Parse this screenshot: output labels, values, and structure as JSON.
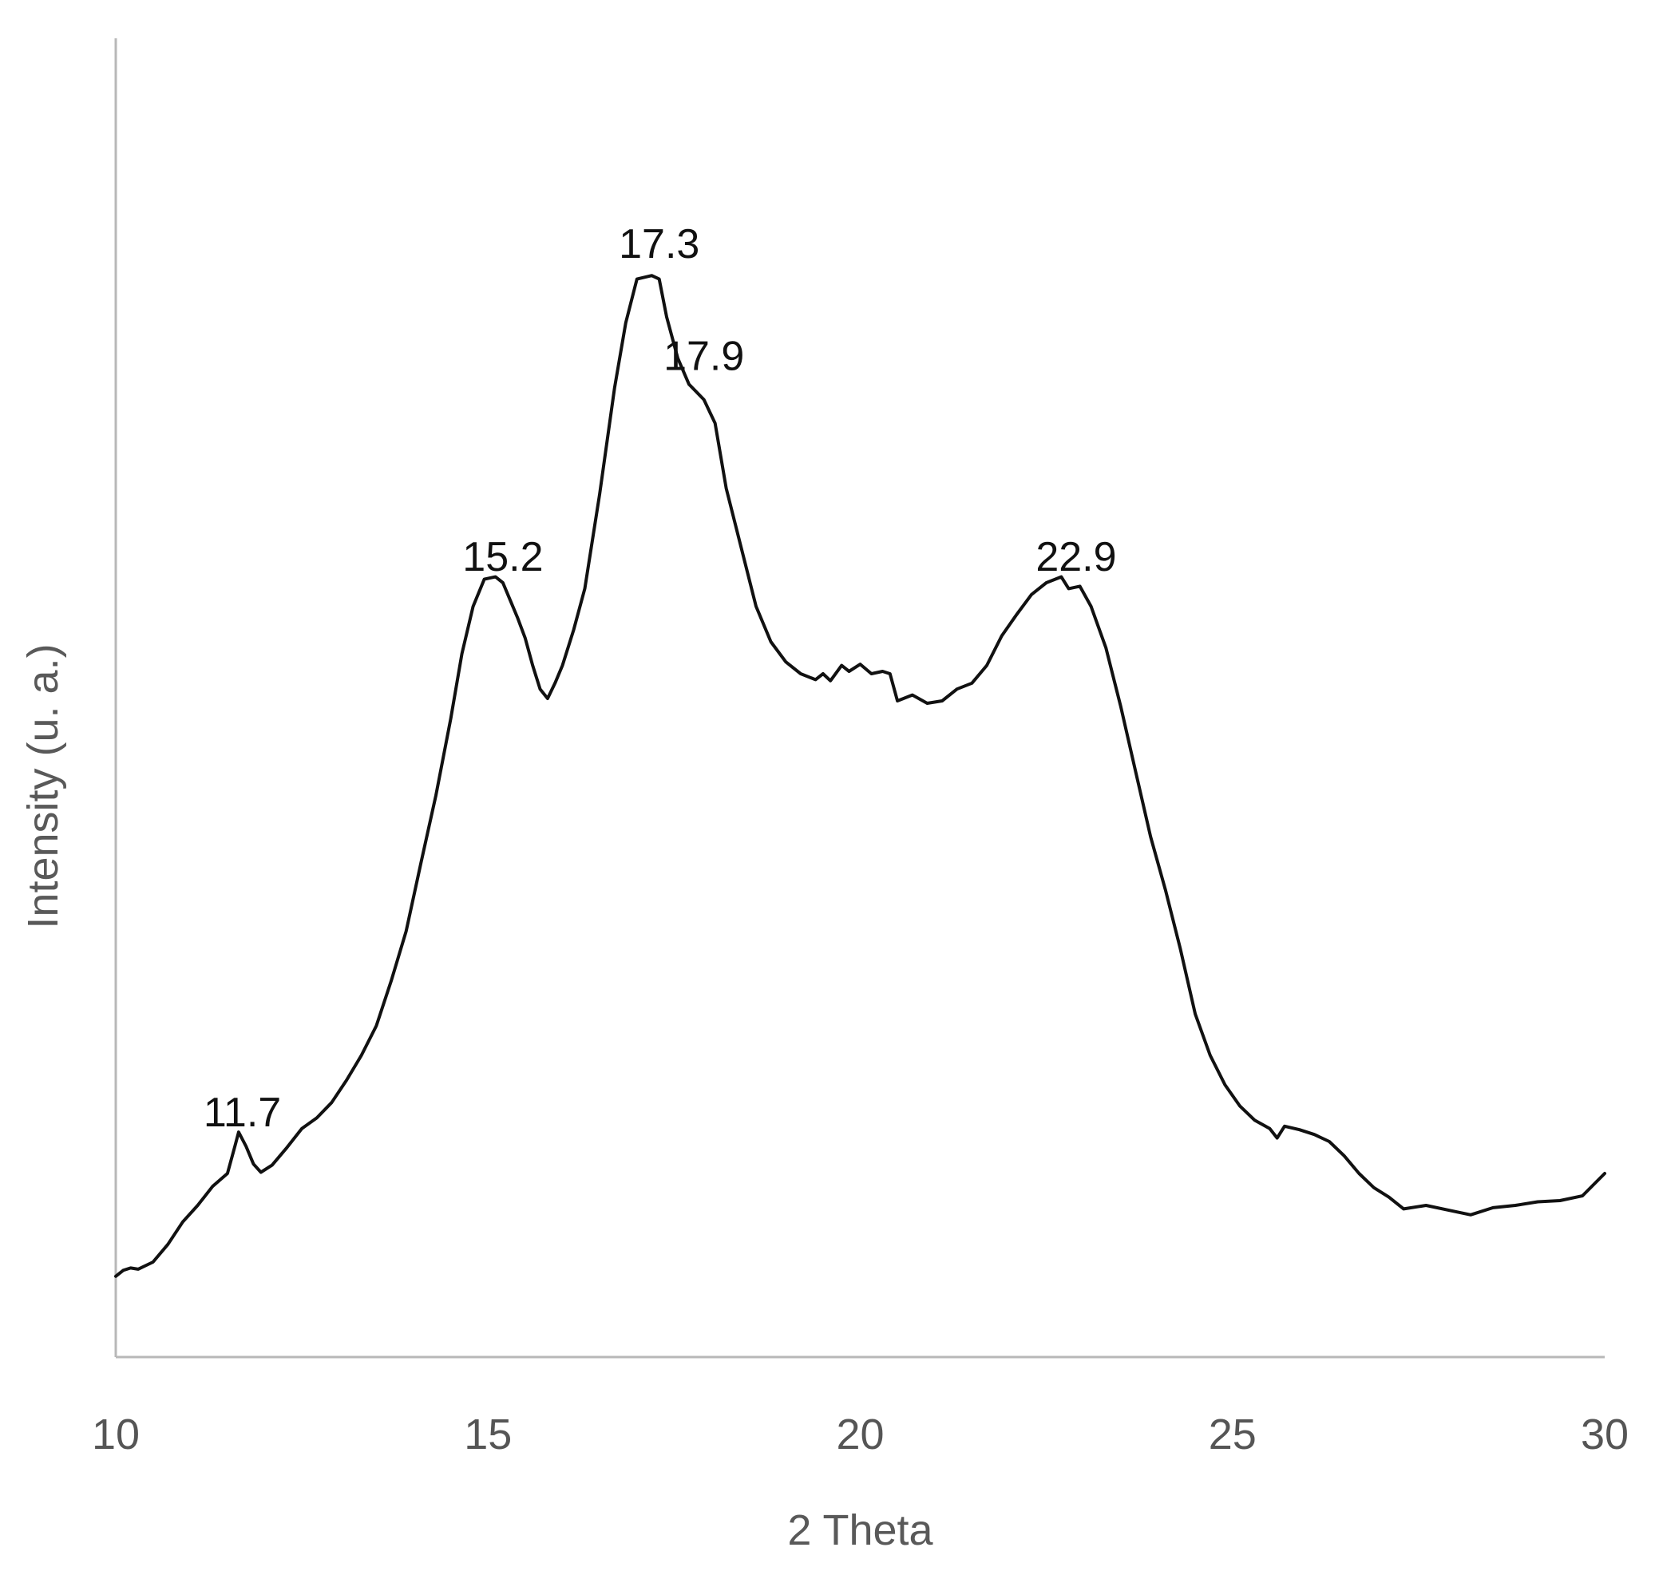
{
  "chart_data": {
    "type": "line",
    "title": "",
    "xlabel": "2 Theta",
    "ylabel": "Intensity (u. a.)",
    "xlim": [
      10,
      30
    ],
    "ylim": [
      0,
      100
    ],
    "x_ticks": [
      "10",
      "15",
      "20",
      "25",
      "30"
    ],
    "y_ticks_shown": false,
    "grid": false,
    "legend": "none",
    "line_color": "#111111",
    "annotations": [
      {
        "text": "11.7",
        "x": 11.7,
        "y": 16.5
      },
      {
        "text": "15.2",
        "x": 15.2,
        "y": 63.5
      },
      {
        "text": "17.3",
        "x": 17.3,
        "y": 90
      },
      {
        "text": "17.9",
        "x": 17.9,
        "y": 80.5
      },
      {
        "text": "22.9",
        "x": 22.9,
        "y": 63.5
      }
    ],
    "series": [
      {
        "values": [
          [
            10.0,
            3.8
          ],
          [
            10.1,
            4.3
          ],
          [
            10.2,
            4.5
          ],
          [
            10.3,
            4.4
          ],
          [
            10.5,
            5.0
          ],
          [
            10.7,
            6.5
          ],
          [
            10.9,
            8.4
          ],
          [
            11.1,
            9.8
          ],
          [
            11.3,
            11.4
          ],
          [
            11.5,
            12.5
          ],
          [
            11.6,
            14.8
          ],
          [
            11.65,
            16.0
          ],
          [
            11.75,
            14.8
          ],
          [
            11.85,
            13.3
          ],
          [
            11.95,
            12.6
          ],
          [
            12.1,
            13.2
          ],
          [
            12.3,
            14.7
          ],
          [
            12.5,
            16.3
          ],
          [
            12.7,
            17.2
          ],
          [
            12.9,
            18.5
          ],
          [
            13.1,
            20.4
          ],
          [
            13.3,
            22.5
          ],
          [
            13.5,
            25.0
          ],
          [
            13.7,
            28.8
          ],
          [
            13.9,
            33.0
          ],
          [
            14.1,
            38.8
          ],
          [
            14.3,
            44.5
          ],
          [
            14.5,
            51.0
          ],
          [
            14.65,
            56.5
          ],
          [
            14.8,
            60.5
          ],
          [
            14.95,
            62.8
          ],
          [
            15.1,
            63.0
          ],
          [
            15.2,
            62.5
          ],
          [
            15.3,
            61.0
          ],
          [
            15.4,
            59.5
          ],
          [
            15.5,
            57.8
          ],
          [
            15.6,
            55.5
          ],
          [
            15.7,
            53.5
          ],
          [
            15.8,
            52.7
          ],
          [
            15.9,
            54.0
          ],
          [
            16.0,
            55.5
          ],
          [
            16.15,
            58.5
          ],
          [
            16.3,
            62.0
          ],
          [
            16.5,
            70.0
          ],
          [
            16.7,
            79.0
          ],
          [
            16.85,
            84.5
          ],
          [
            17.0,
            88.2
          ],
          [
            17.2,
            88.5
          ],
          [
            17.3,
            88.2
          ],
          [
            17.4,
            85.0
          ],
          [
            17.55,
            81.5
          ],
          [
            17.7,
            79.3
          ],
          [
            17.9,
            78.0
          ],
          [
            18.05,
            76.0
          ],
          [
            18.2,
            70.5
          ],
          [
            18.4,
            65.5
          ],
          [
            18.6,
            60.5
          ],
          [
            18.8,
            57.5
          ],
          [
            19.0,
            55.8
          ],
          [
            19.2,
            54.8
          ],
          [
            19.4,
            54.3
          ],
          [
            19.5,
            54.8
          ],
          [
            19.6,
            54.2
          ],
          [
            19.75,
            55.5
          ],
          [
            19.85,
            55.0
          ],
          [
            20.0,
            55.6
          ],
          [
            20.15,
            54.8
          ],
          [
            20.3,
            55.0
          ],
          [
            20.4,
            54.8
          ],
          [
            20.5,
            52.5
          ],
          [
            20.7,
            53.0
          ],
          [
            20.9,
            52.3
          ],
          [
            21.1,
            52.5
          ],
          [
            21.3,
            53.5
          ],
          [
            21.5,
            54.0
          ],
          [
            21.7,
            55.5
          ],
          [
            21.9,
            58.0
          ],
          [
            22.1,
            59.8
          ],
          [
            22.3,
            61.5
          ],
          [
            22.5,
            62.5
          ],
          [
            22.7,
            63.0
          ],
          [
            22.8,
            62.0
          ],
          [
            22.95,
            62.2
          ],
          [
            23.1,
            60.5
          ],
          [
            23.3,
            57.0
          ],
          [
            23.5,
            52.0
          ],
          [
            23.7,
            46.5
          ],
          [
            23.9,
            41.0
          ],
          [
            24.1,
            36.5
          ],
          [
            24.3,
            31.5
          ],
          [
            24.5,
            26.0
          ],
          [
            24.7,
            22.5
          ],
          [
            24.9,
            20.0
          ],
          [
            25.1,
            18.2
          ],
          [
            25.3,
            17.0
          ],
          [
            25.5,
            16.3
          ],
          [
            25.6,
            15.5
          ],
          [
            25.7,
            16.5
          ],
          [
            25.9,
            16.2
          ],
          [
            26.1,
            15.8
          ],
          [
            26.3,
            15.2
          ],
          [
            26.5,
            14.0
          ],
          [
            26.7,
            12.5
          ],
          [
            26.9,
            11.3
          ],
          [
            27.1,
            10.5
          ],
          [
            27.3,
            9.5
          ],
          [
            27.6,
            9.8
          ],
          [
            27.9,
            9.4
          ],
          [
            28.2,
            9.0
          ],
          [
            28.5,
            9.6
          ],
          [
            28.8,
            9.8
          ],
          [
            29.1,
            10.1
          ],
          [
            29.4,
            10.2
          ],
          [
            29.7,
            10.6
          ],
          [
            30.0,
            12.5
          ]
        ]
      }
    ]
  }
}
